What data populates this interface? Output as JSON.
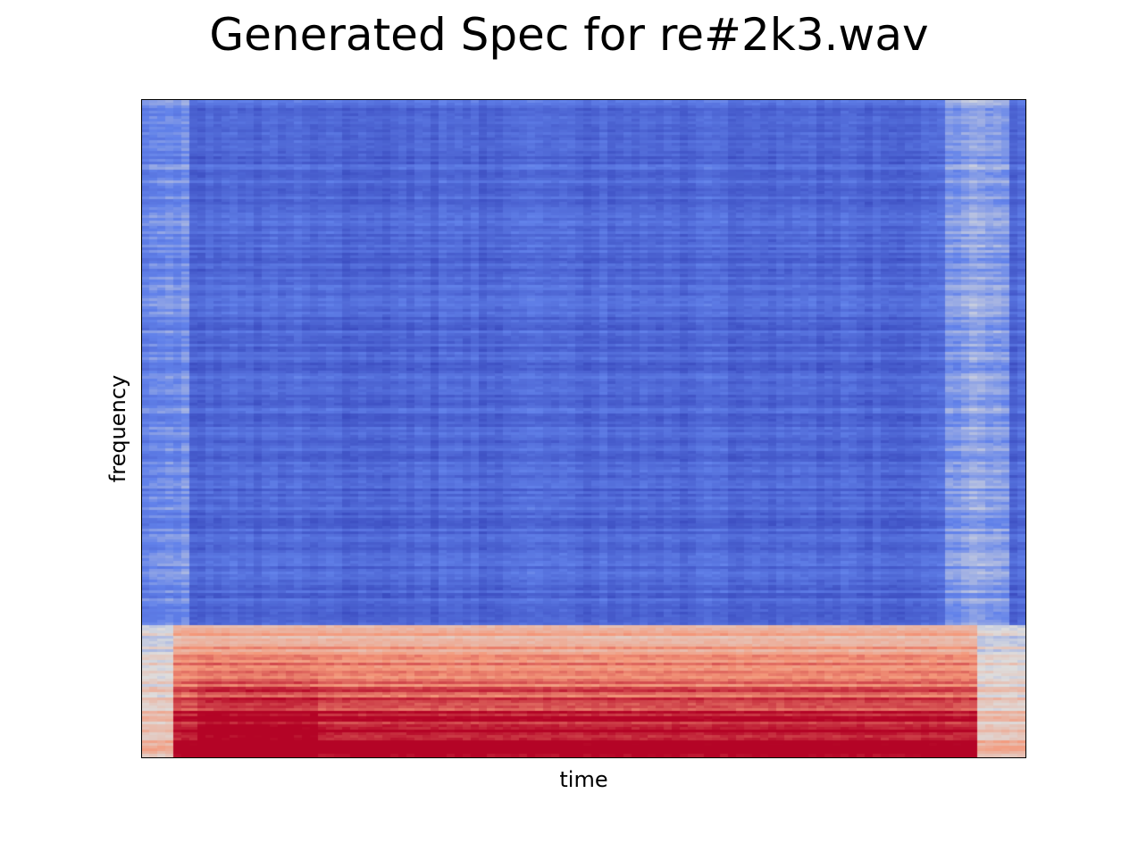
{
  "title": "Generated Spec for re#2k3.wav",
  "chart_data": {
    "type": "heatmap",
    "title": "Generated Spec for re#2k3.wav",
    "xlabel": "time",
    "ylabel": "frequency",
    "colormap": "coolwarm",
    "colors": {
      "low": "#3b4cc0",
      "mid": "#dddddd",
      "high": "#b40426"
    },
    "grid": false,
    "xticks": [],
    "yticks": [],
    "description_of_values": "energy concentrated in low-frequency bands across most of the duration, strongest near the start; quieter high-frequency bands; brighter broadband regions near the beginning and end"
  }
}
